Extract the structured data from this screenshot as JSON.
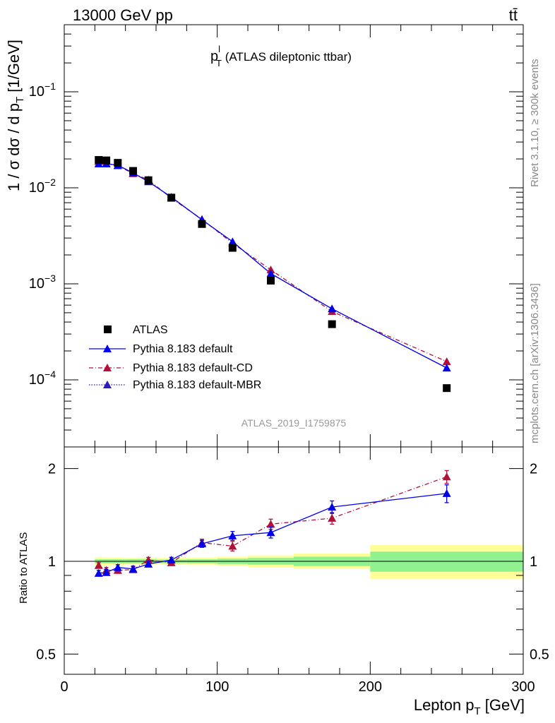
{
  "header": {
    "energy_label": "13000 GeV pp",
    "process_label": "tt̄"
  },
  "side_labels": {
    "rivet": "Rivet 3.1.10, ≥ 300k events",
    "mcplots": "mcplots.cern.ch [arXiv:1306.3436]"
  },
  "plot": {
    "title_main": "p",
    "title_sup": "l",
    "title_sub": "T",
    "title_rest": " (ATLAS dileptonic ttbar)",
    "analysis_id": "ATLAS_2019_I1759875"
  },
  "ylabel_main": {
    "part1": "1 / σ  dσ / d p",
    "sub": "T",
    "part2": " [1/GeV]"
  },
  "xlabel": {
    "part1": "Lepton p",
    "sub": "T",
    "part2": " [GeV]"
  },
  "ratio_ylabel": "Ratio to ATLAS",
  "legend": [
    {
      "label": "ATLAS"
    },
    {
      "label": "Pythia 8.183 default"
    },
    {
      "label": "Pythia 8.183 default-CD"
    },
    {
      "label": "Pythia 8.183 default-MBR"
    }
  ],
  "colors": {
    "data": "#000000",
    "default": "#0000ee",
    "cd": "#b0103a",
    "mbr": "#2a1ab8",
    "band_inner": "#8ff28f",
    "band_outer": "#ffff9a"
  },
  "chart_data": [
    {
      "type": "line",
      "title": "p_T^l (ATLAS dileptonic ttbar)",
      "xlabel": "Lepton p_T [GeV]",
      "ylabel": "1 / σ dσ / d p_T [1/GeV]",
      "xlim": [
        0,
        300
      ],
      "ylim": [
        2e-05,
        0.5
      ],
      "yscale": "log",
      "y_tick_labels": [
        "10^-4",
        "10^-3",
        "10^-2",
        "10^-1"
      ],
      "legend_position": "bottom-left",
      "x": [
        22.5,
        27.5,
        35,
        45,
        55,
        70,
        90,
        110,
        135,
        175,
        250
      ],
      "series": [
        {
          "name": "ATLAS",
          "values": [
            0.0195,
            0.0193,
            0.0182,
            0.015,
            0.012,
            0.0079,
            0.0042,
            0.00237,
            0.00108,
            0.00038,
            8.2e-05
          ]
        },
        {
          "name": "Pythia 8.183 default",
          "values": [
            0.0178,
            0.0178,
            0.0172,
            0.0143,
            0.0116,
            0.008,
            0.00465,
            0.00275,
            0.00128,
            0.00055,
            0.000133
          ]
        },
        {
          "name": "Pythia 8.183 default-CD",
          "values": [
            0.0188,
            0.018,
            0.017,
            0.0141,
            0.0121,
            0.0078,
            0.0047,
            0.00265,
            0.0014,
            0.000515,
            0.000155
          ]
        },
        {
          "name": "Pythia 8.183 default-MBR",
          "values": [
            0.0178,
            0.0178,
            0.0172,
            0.0143,
            0.0116,
            0.008,
            0.00465,
            0.00275,
            0.00128,
            0.00055,
            0.000133
          ]
        }
      ]
    },
    {
      "type": "line",
      "ylabel": "Ratio to ATLAS",
      "xlabel": "Lepton p_T [GeV]",
      "xlim": [
        0,
        300
      ],
      "ylim": [
        0.43,
        2.35
      ],
      "yscale": "log",
      "y_tick_labels": [
        "0.5",
        "1",
        "2"
      ],
      "x": [
        22.5,
        27.5,
        35,
        45,
        55,
        70,
        90,
        110,
        135,
        175,
        250
      ],
      "series": [
        {
          "name": "Pythia 8.183 default",
          "values": [
            0.915,
            0.92,
            0.955,
            0.945,
            0.98,
            1.01,
            1.14,
            1.21,
            1.24,
            1.5,
            1.66
          ],
          "errors": [
            0.02,
            0.02,
            0.02,
            0.02,
            0.02,
            0.02,
            0.03,
            0.04,
            0.05,
            0.07,
            0.11
          ]
        },
        {
          "name": "Pythia 8.183 default-CD",
          "values": [
            0.97,
            0.935,
            0.935,
            0.94,
            1.01,
            0.99,
            1.15,
            1.12,
            1.32,
            1.38,
            1.88
          ],
          "errors": [
            0.02,
            0.02,
            0.02,
            0.02,
            0.02,
            0.02,
            0.03,
            0.04,
            0.05,
            0.06,
            0.09
          ]
        }
      ],
      "bands": [
        {
          "x": [
            20,
            25
          ],
          "inner": [
            0.985,
            1.015
          ],
          "outer": [
            0.97,
            1.03
          ]
        },
        {
          "x": [
            25,
            30
          ],
          "inner": [
            0.985,
            1.015
          ],
          "outer": [
            0.97,
            1.03
          ]
        },
        {
          "x": [
            30,
            40
          ],
          "inner": [
            0.985,
            1.015
          ],
          "outer": [
            0.97,
            1.03
          ]
        },
        {
          "x": [
            40,
            50
          ],
          "inner": [
            0.985,
            1.015
          ],
          "outer": [
            0.975,
            1.025
          ]
        },
        {
          "x": [
            50,
            60
          ],
          "inner": [
            0.985,
            1.015
          ],
          "outer": [
            0.975,
            1.025
          ]
        },
        {
          "x": [
            60,
            80
          ],
          "inner": [
            0.987,
            1.013
          ],
          "outer": [
            0.975,
            1.025
          ]
        },
        {
          "x": [
            80,
            100
          ],
          "inner": [
            0.985,
            1.015
          ],
          "outer": [
            0.972,
            1.028
          ]
        },
        {
          "x": [
            100,
            120
          ],
          "inner": [
            0.98,
            1.02
          ],
          "outer": [
            0.965,
            1.035
          ]
        },
        {
          "x": [
            120,
            150
          ],
          "inner": [
            0.975,
            1.025
          ],
          "outer": [
            0.955,
            1.045
          ]
        },
        {
          "x": [
            150,
            200
          ],
          "inner": [
            0.965,
            1.035
          ],
          "outer": [
            0.945,
            1.06
          ]
        },
        {
          "x": [
            200,
            300
          ],
          "inner": [
            0.925,
            1.075
          ],
          "outer": [
            0.875,
            1.13
          ]
        }
      ]
    }
  ]
}
